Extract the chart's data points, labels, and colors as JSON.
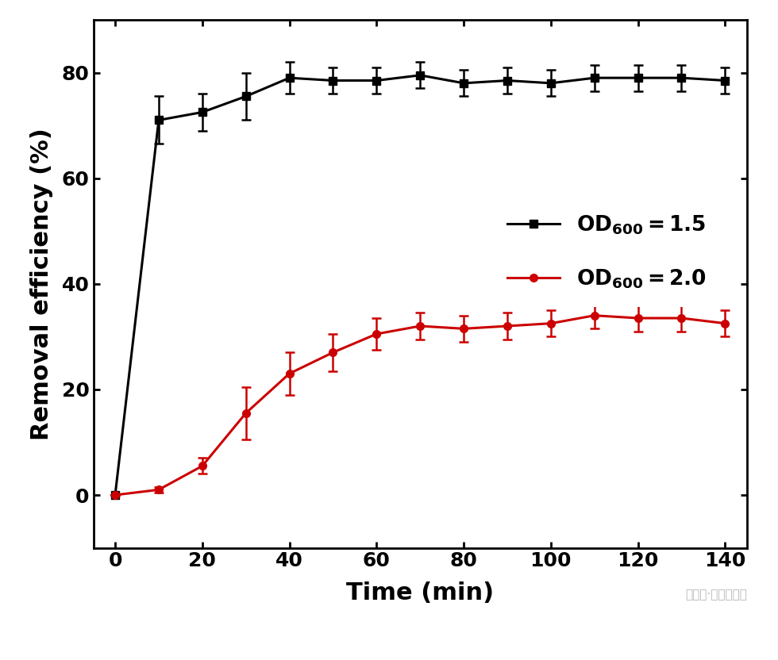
{
  "black_x": [
    0,
    10,
    20,
    30,
    40,
    50,
    60,
    70,
    80,
    90,
    100,
    110,
    120,
    130,
    140
  ],
  "black_y": [
    0,
    71,
    72.5,
    75.5,
    79,
    78.5,
    78.5,
    79.5,
    78,
    78.5,
    78,
    79,
    79,
    79,
    78.5
  ],
  "black_yerr": [
    0,
    4.5,
    3.5,
    4.5,
    3,
    2.5,
    2.5,
    2.5,
    2.5,
    2.5,
    2.5,
    2.5,
    2.5,
    2.5,
    2.5
  ],
  "red_x": [
    0,
    10,
    20,
    30,
    40,
    50,
    60,
    70,
    80,
    90,
    100,
    110,
    120,
    130,
    140
  ],
  "red_y": [
    0,
    1,
    5.5,
    15.5,
    23,
    27,
    30.5,
    32,
    31.5,
    32,
    32.5,
    34,
    33.5,
    33.5,
    32.5
  ],
  "red_yerr": [
    0,
    0.5,
    1.5,
    5,
    4,
    3.5,
    3,
    2.5,
    2.5,
    2.5,
    2.5,
    2.5,
    2.5,
    2.5,
    2.5
  ],
  "xlabel": "Time (min)",
  "ylabel": "Removal efficiency (%)",
  "xlim": [
    -5,
    145
  ],
  "ylim": [
    -10,
    90
  ],
  "xticks": [
    0,
    20,
    40,
    60,
    80,
    100,
    120,
    140
  ],
  "yticks": [
    0,
    20,
    40,
    60,
    80
  ],
  "black_color": "#000000",
  "red_color": "#cc0000",
  "linewidth": 2.2,
  "marker_black": "s",
  "marker_red": "o",
  "markersize": 7,
  "capsize": 4,
  "legend_fontsize": 19,
  "axis_label_fontsize": 22,
  "tick_fontsize": 18,
  "watermark": "公众号·石墨烯研究"
}
